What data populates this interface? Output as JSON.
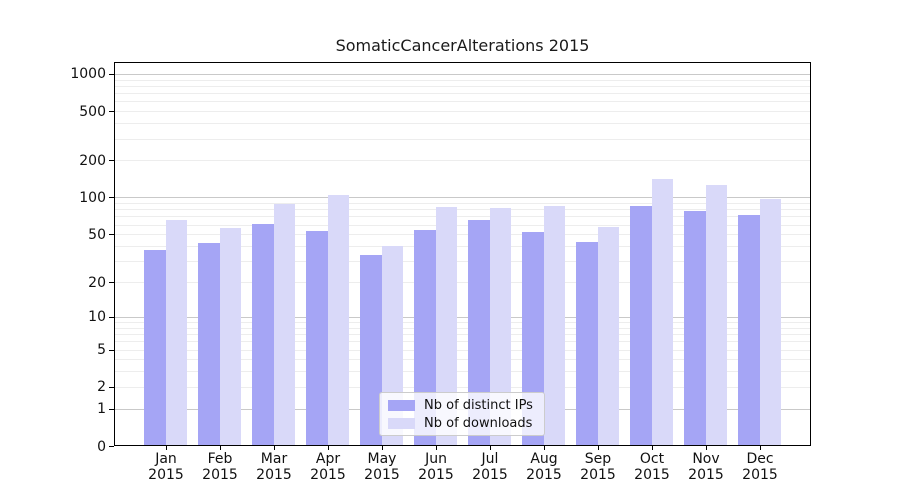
{
  "chart_data": {
    "type": "bar",
    "title": "SomaticCancerAlterations 2015",
    "categories": [
      "Jan",
      "Feb",
      "Mar",
      "Apr",
      "May",
      "Jun",
      "Jul",
      "Aug",
      "Sep",
      "Oct",
      "Nov",
      "Dec"
    ],
    "category_year": "2015",
    "series": [
      {
        "name": "Nb of distinct IPs",
        "color": "#a5a5f5",
        "values": [
          37,
          42,
          61,
          53,
          34,
          54,
          65,
          52,
          43,
          85,
          78,
          72
        ]
      },
      {
        "name": "Nb of downloads",
        "color": "#d9d9f9",
        "values": [
          65,
          56,
          88,
          105,
          40,
          83,
          82,
          85,
          57,
          140,
          127,
          98
        ]
      }
    ],
    "y_ticks": [
      0,
      1,
      2,
      5,
      10,
      20,
      50,
      100,
      200,
      500,
      1000
    ],
    "y_scale": "log(value+1)",
    "ylim": [
      0,
      1250
    ],
    "grid": true,
    "legend_position": "bottom-center",
    "axis_color": "#000000",
    "grid_minor_color": "#ededed",
    "grid_major_color": "#c9c9c9",
    "background_color": "#ffffff"
  }
}
